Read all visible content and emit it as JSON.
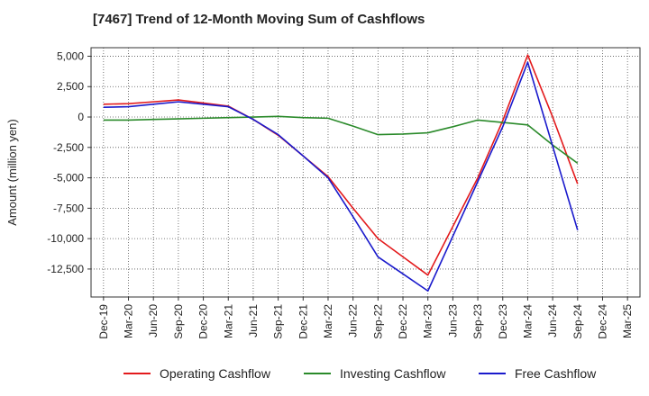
{
  "chart_data": {
    "type": "line",
    "title": "[7467]  Trend of 12-Month Moving Sum of Cashflows",
    "xlabel": "",
    "ylabel": "Amount (million yen)",
    "categories": [
      "Dec-19",
      "Mar-20",
      "Jun-20",
      "Sep-20",
      "Dec-20",
      "Mar-21",
      "Jun-21",
      "Sep-21",
      "Dec-21",
      "Mar-22",
      "Jun-22",
      "Sep-22",
      "Dec-22",
      "Mar-23",
      "Jun-23",
      "Sep-23",
      "Dec-23",
      "Mar-24",
      "Jun-24",
      "Sep-24",
      "Dec-24",
      "Mar-25"
    ],
    "y_ticks": [
      5000,
      2500,
      0,
      -2500,
      -5000,
      -7500,
      -10000,
      -12500
    ],
    "y_tick_labels": [
      "5,000",
      "2,500",
      "0",
      "-2,500",
      "-5,000",
      "-7,500",
      "-10,000",
      "-12,500"
    ],
    "ylim": [
      -14800,
      5700
    ],
    "grid": true,
    "legend_position": "bottom",
    "series": [
      {
        "name": "Operating Cashflow",
        "color": "#e31a1c",
        "values": [
          1050,
          1100,
          1250,
          1400,
          1150,
          900,
          -200,
          -1500,
          -3200,
          -4900,
          -7500,
          -10000,
          -11500,
          -13000,
          -9000,
          -5000,
          -300,
          5100,
          0,
          -5500,
          null,
          null
        ]
      },
      {
        "name": "Investing Cashflow",
        "color": "#2a8a2a",
        "values": [
          -250,
          -250,
          -200,
          -150,
          -100,
          -50,
          0,
          50,
          -50,
          -100,
          -750,
          -1450,
          -1400,
          -1300,
          -800,
          -250,
          -450,
          -650,
          -2300,
          -3800,
          null,
          null
        ]
      },
      {
        "name": "Free Cashflow",
        "color": "#1a1acc",
        "values": [
          800,
          850,
          1050,
          1250,
          1050,
          850,
          -200,
          -1450,
          -3200,
          -5000,
          -8200,
          -11500,
          -12900,
          -14300,
          -9800,
          -5300,
          -800,
          4500,
          -2400,
          -9300,
          null,
          null
        ]
      }
    ]
  }
}
